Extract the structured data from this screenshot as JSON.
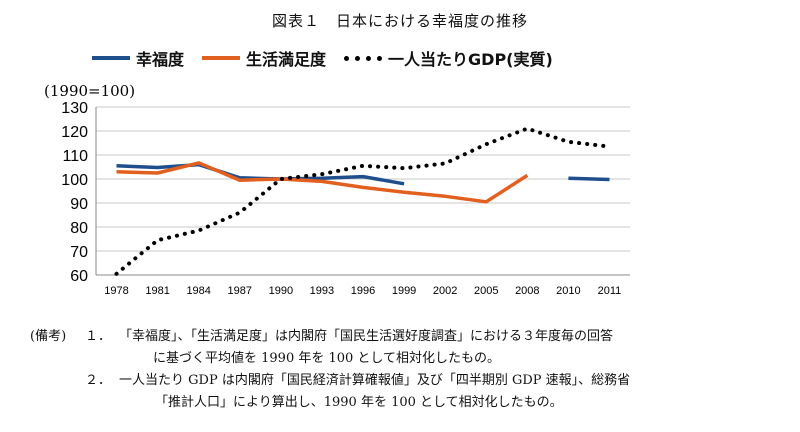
{
  "title": "図表１　日本における幸福度の推移",
  "chart_data": {
    "type": "line",
    "unit_label": "(1990=100)",
    "categories": [
      "1978",
      "1981",
      "1984",
      "1987",
      "1990",
      "1993",
      "1996",
      "1999",
      "2002",
      "2005",
      "2008",
      "2010",
      "2011"
    ],
    "ylim": [
      60,
      130
    ],
    "yticks": [
      60,
      70,
      80,
      90,
      100,
      110,
      120,
      130
    ],
    "grid": true,
    "legend_position": "top",
    "series": [
      {
        "name": "幸福度",
        "color": "#1f4e8c",
        "style": "solid",
        "values": [
          105.5,
          104.8,
          106.0,
          100.5,
          100.0,
          100.3,
          101.0,
          98.0,
          null,
          null,
          null,
          100.3,
          99.8
        ]
      },
      {
        "name": "生活満足度",
        "color": "#e2601f",
        "style": "solid",
        "values": [
          103.0,
          102.5,
          106.7,
          99.5,
          100.0,
          99.0,
          96.5,
          94.5,
          92.8,
          90.5,
          101.5,
          null,
          null
        ]
      },
      {
        "name": "一人当たりGDP(実質)",
        "color": "#000000",
        "style": "dotted",
        "values": [
          60.5,
          74.5,
          78.5,
          86.0,
          100.0,
          102.0,
          105.5,
          104.5,
          106.5,
          114.5,
          121.0,
          115.5,
          113.5
        ]
      }
    ]
  },
  "notes": {
    "head": "(備考)",
    "n1_num": "１．",
    "n1_line1": "「幸福度」、「生活満足度」は内閣府「国民生活選好度調査」における３年度毎の回答",
    "n1_line2": "に基づく平均値を 1990 年を 100 として相対化したもの。",
    "n2_num": "２．",
    "n2_line1": "一人当たり GDP は内閣府「国民経済計算確報値」及び「四半期別 GDP 速報」、総務省",
    "n2_line2": "「推計人口」により算出し、1990 年を 100 として相対化したもの。"
  }
}
